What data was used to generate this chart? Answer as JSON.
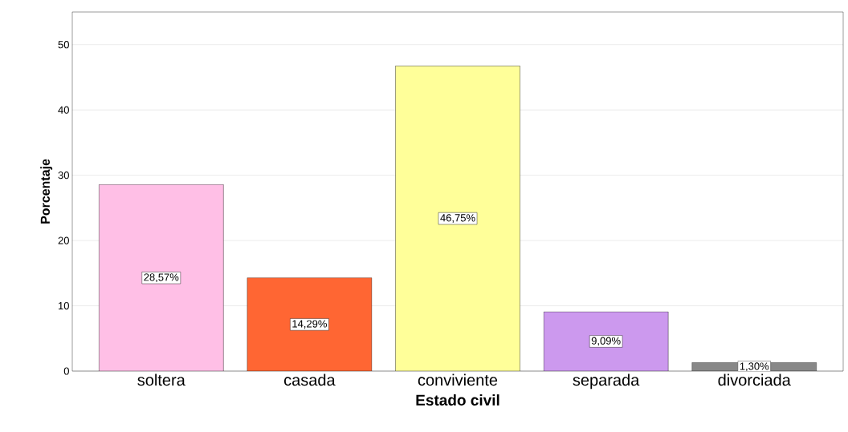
{
  "chart_data": {
    "type": "bar",
    "xlabel": "Estado civil",
    "ylabel": "Porcentaje",
    "categories": [
      "soltera",
      "casada",
      "conviviente",
      "separada",
      "divorciada"
    ],
    "values": [
      28.57,
      14.29,
      46.75,
      9.09,
      1.3
    ],
    "colors": [
      "#ffbfe6",
      "#ff6633",
      "#ffff99",
      "#cc99ee",
      "#888888"
    ],
    "value_labels": [
      "28,57%",
      "14,29%",
      "46,75%",
      "9,09%",
      "1,30%"
    ],
    "ylim": [
      0,
      55
    ],
    "yticks": [
      0,
      10,
      20,
      30,
      40,
      50
    ],
    "grid": "y"
  }
}
